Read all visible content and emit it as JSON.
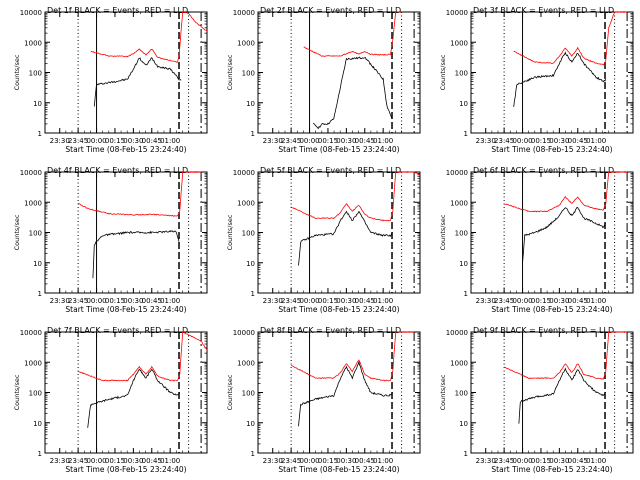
{
  "figure": {
    "xlabel": "Start Time (08-Feb-15 23:24:40)",
    "ylabel": "Counts/sec",
    "colors": {
      "events": "#000000",
      "lld": "#ff0000",
      "axes": "#000000",
      "background": "#ffffff"
    }
  },
  "chart_data": [
    {
      "type": "line",
      "title": "Det 1f BLACK = Events, RED = LLD",
      "xlabel": "Start Time (08-Feb-15 23:24:40)",
      "ylabel": "Counts/sec",
      "x_ticks": [
        "23:30",
        "23:45",
        "00:00",
        "00:15",
        "00:30",
        "00:45",
        "01:00"
      ],
      "y_ticks": [
        "1",
        "10",
        "100",
        "1000",
        "10000"
      ],
      "y_scale": "log",
      "ylim": [
        1,
        10000
      ],
      "series": [
        {
          "name": "Events",
          "color": "#000000",
          "x": [
            23.97,
            24.0,
            24.25,
            24.42,
            24.5,
            24.58,
            24.67,
            24.75,
            24.83,
            25.0,
            25.08,
            25.12,
            25.15
          ],
          "values": [
            8,
            40,
            50,
            60,
            130,
            300,
            170,
            300,
            160,
            130,
            80,
            60,
            55
          ]
        },
        {
          "name": "LLD",
          "color": "#ff0000",
          "x": [
            23.92,
            24.17,
            24.42,
            24.5,
            24.58,
            24.67,
            24.75,
            24.83,
            25.0,
            25.1,
            25.12,
            25.17,
            25.25,
            25.33,
            25.5
          ],
          "values": [
            500,
            350,
            340,
            420,
            600,
            380,
            600,
            320,
            250,
            220,
            350,
            10000,
            9000,
            5000,
            2300
          ]
        }
      ]
    },
    {
      "type": "line",
      "title": "Det 2f BLACK = Events, RED = LLD",
      "xlabel": "Start Time (08-Feb-15 23:24:40)",
      "ylabel": "Counts/sec",
      "x_ticks": [
        "23:30",
        "23:45",
        "00:00",
        "00:15",
        "00:30",
        "00:45",
        "01:00"
      ],
      "y_ticks": [
        "1",
        "10",
        "100",
        "1000",
        "10000"
      ],
      "y_scale": "log",
      "ylim": [
        1,
        10000
      ],
      "series": [
        {
          "name": "Events",
          "color": "#000000",
          "x": [
            24.05,
            24.12,
            24.18,
            24.25,
            24.33,
            24.5,
            24.67,
            24.75,
            24.83,
            25.0,
            25.05,
            25.12
          ],
          "values": [
            2,
            1.5,
            2,
            2,
            3,
            280,
            300,
            320,
            190,
            60,
            8,
            3
          ]
        },
        {
          "name": "LLD",
          "color": "#ff0000",
          "x": [
            23.92,
            24.17,
            24.42,
            24.58,
            24.67,
            24.75,
            24.83,
            25.0,
            25.1,
            25.13,
            25.17,
            25.25
          ],
          "values": [
            700,
            350,
            350,
            500,
            400,
            500,
            400,
            380,
            400,
            1200,
            10000,
            10000
          ]
        }
      ]
    },
    {
      "type": "line",
      "title": "Det 3f BLACK = Events, RED = LLD",
      "xlabel": "Start Time (08-Feb-15 23:24:40)",
      "ylabel": "Counts/sec",
      "x_ticks": [
        "23:30",
        "23:45",
        "00:00",
        "00:15",
        "00:30",
        "00:45",
        "01:00"
      ],
      "y_ticks": [
        "1",
        "10",
        "100",
        "1000",
        "10000"
      ],
      "y_scale": "log",
      "ylim": [
        1,
        10000
      ],
      "series": [
        {
          "name": "Events",
          "color": "#000000",
          "x": [
            23.88,
            23.92,
            24.17,
            24.42,
            24.5,
            24.58,
            24.67,
            24.75,
            24.83,
            25.0,
            25.1,
            25.13
          ],
          "values": [
            7,
            40,
            70,
            80,
            200,
            450,
            220,
            450,
            200,
            70,
            50,
            60
          ]
        },
        {
          "name": "LLD",
          "color": "#ff0000",
          "x": [
            23.88,
            24.17,
            24.42,
            24.5,
            24.58,
            24.67,
            24.75,
            24.83,
            25.0,
            25.1,
            25.13,
            25.17,
            25.25,
            25.42
          ],
          "values": [
            500,
            220,
            200,
            350,
            650,
            350,
            650,
            300,
            200,
            180,
            250,
            3000,
            10000,
            10000
          ]
        }
      ]
    },
    {
      "type": "line",
      "title": "Det 4f BLACK = Events, RED = LLD",
      "xlabel": "Start Time (08-Feb-15 23:24:40)",
      "ylabel": "Counts/sec",
      "x_ticks": [
        "23:30",
        "23:45",
        "00:00",
        "00:15",
        "00:30",
        "00:45",
        "01:00"
      ],
      "y_ticks": [
        "1",
        "10",
        "100",
        "1000",
        "10000"
      ],
      "y_scale": "log",
      "ylim": [
        1,
        10000
      ],
      "series": [
        {
          "name": "Events",
          "color": "#000000",
          "x": [
            23.95,
            23.97,
            24.08,
            24.42,
            24.75,
            25.08,
            25.12
          ],
          "values": [
            3,
            40,
            80,
            100,
            100,
            110,
            50
          ]
        },
        {
          "name": "LLD",
          "color": "#ff0000",
          "x": [
            23.75,
            23.9,
            24.17,
            24.5,
            24.75,
            25.0,
            25.1,
            25.13,
            25.17,
            25.42
          ],
          "values": [
            900,
            600,
            420,
            380,
            400,
            360,
            350,
            500,
            10000,
            10000
          ]
        }
      ]
    },
    {
      "type": "line",
      "title": "Det 5f BLACK = Events, RED = LLD",
      "xlabel": "Start Time (08-Feb-15 23:24:40)",
      "ylabel": "Counts/sec",
      "x_ticks": [
        "23:30",
        "23:45",
        "00:00",
        "00:15",
        "00:30",
        "00:45",
        "01:00"
      ],
      "y_ticks": [
        "1",
        "10",
        "100",
        "1000",
        "10000"
      ],
      "y_scale": "log",
      "ylim": [
        1,
        10000
      ],
      "series": [
        {
          "name": "Events",
          "color": "#000000",
          "x": [
            23.85,
            23.88,
            24.08,
            24.33,
            24.42,
            24.5,
            24.58,
            24.67,
            24.75,
            24.83,
            25.0,
            25.1,
            25.13
          ],
          "values": [
            8,
            50,
            80,
            90,
            250,
            500,
            250,
            500,
            220,
            100,
            80,
            80,
            100
          ]
        },
        {
          "name": "LLD",
          "color": "#ff0000",
          "x": [
            23.75,
            24.08,
            24.33,
            24.42,
            24.5,
            24.58,
            24.67,
            24.75,
            24.83,
            25.0,
            25.1,
            25.13,
            25.17,
            25.42,
            25.5
          ],
          "values": [
            700,
            300,
            300,
            450,
            900,
            500,
            800,
            400,
            300,
            250,
            250,
            500,
            10000,
            10000,
            8000
          ]
        }
      ]
    },
    {
      "type": "line",
      "title": "Det 6f BLACK = Events, RED = LLD",
      "xlabel": "Start Time (08-Feb-15 23:24:40)",
      "ylabel": "Counts/sec",
      "x_ticks": [
        "23:30",
        "23:45",
        "00:00",
        "00:15",
        "00:30",
        "00:45",
        "01:00"
      ],
      "y_ticks": [
        "1",
        "10",
        "100",
        "1000",
        "10000"
      ],
      "y_scale": "log",
      "ylim": [
        1,
        10000
      ],
      "series": [
        {
          "name": "Events",
          "color": "#000000",
          "x": [
            24.0,
            24.03,
            24.17,
            24.33,
            24.5,
            24.58,
            24.67,
            24.75,
            24.83,
            25.0,
            25.1,
            25.13
          ],
          "values": [
            10,
            80,
            100,
            150,
            350,
            700,
            350,
            700,
            300,
            200,
            150,
            200
          ]
        },
        {
          "name": "LLD",
          "color": "#ff0000",
          "x": [
            23.75,
            24.08,
            24.33,
            24.5,
            24.58,
            24.67,
            24.75,
            24.83,
            25.0,
            25.1,
            25.13,
            25.17,
            25.42
          ],
          "values": [
            900,
            500,
            500,
            800,
            1500,
            900,
            1500,
            800,
            600,
            550,
            900,
            10000,
            10000
          ]
        }
      ]
    },
    {
      "type": "line",
      "title": "Det 7f BLACK = Events, RED = LLD",
      "xlabel": "Start Time (08-Feb-15 23:24:40)",
      "ylabel": "Counts/sec",
      "x_ticks": [
        "23:30",
        "23:45",
        "00:00",
        "00:15",
        "00:30",
        "00:45",
        "01:00"
      ],
      "y_ticks": [
        "1",
        "10",
        "100",
        "1000",
        "10000"
      ],
      "y_scale": "log",
      "ylim": [
        1,
        10000
      ],
      "series": [
        {
          "name": "Events",
          "color": "#000000",
          "x": [
            23.88,
            23.92,
            24.17,
            24.42,
            24.5,
            24.58,
            24.67,
            24.75,
            24.83,
            25.0,
            25.1,
            25.13
          ],
          "values": [
            7,
            40,
            60,
            80,
            250,
            600,
            300,
            600,
            250,
            100,
            80,
            100
          ]
        },
        {
          "name": "LLD",
          "color": "#ff0000",
          "x": [
            23.75,
            24.08,
            24.42,
            24.5,
            24.58,
            24.67,
            24.75,
            24.83,
            25.0,
            25.1,
            25.13,
            25.17,
            25.42,
            25.5
          ],
          "values": [
            500,
            250,
            250,
            400,
            700,
            400,
            700,
            350,
            250,
            250,
            400,
            10000,
            5000,
            2500
          ]
        }
      ]
    },
    {
      "type": "line",
      "title": "Det 8f BLACK = Events, RED = LLD",
      "xlabel": "Start Time (08-Feb-15 23:24:40)",
      "ylabel": "Counts/sec",
      "x_ticks": [
        "23:30",
        "23:45",
        "00:00",
        "00:15",
        "00:30",
        "00:45",
        "01:00"
      ],
      "y_ticks": [
        "1",
        "10",
        "100",
        "1000",
        "10000"
      ],
      "y_scale": "log",
      "ylim": [
        1,
        10000
      ],
      "series": [
        {
          "name": "Events",
          "color": "#000000",
          "x": [
            23.85,
            23.88,
            24.08,
            24.33,
            24.42,
            24.5,
            24.58,
            24.67,
            24.75,
            24.83,
            25.0,
            25.1,
            25.13
          ],
          "values": [
            8,
            40,
            60,
            80,
            300,
            700,
            300,
            1000,
            250,
            100,
            80,
            80,
            100
          ]
        },
        {
          "name": "LLD",
          "color": "#ff0000",
          "x": [
            23.75,
            24.08,
            24.33,
            24.42,
            24.5,
            24.58,
            24.67,
            24.75,
            24.83,
            25.0,
            25.1,
            25.13,
            25.17,
            25.42
          ],
          "values": [
            800,
            300,
            300,
            450,
            900,
            500,
            1200,
            400,
            300,
            250,
            250,
            500,
            10000,
            10000
          ]
        }
      ]
    },
    {
      "type": "line",
      "title": "Det 9f BLACK = Events, RED = LLD",
      "xlabel": "Start Time (08-Feb-15 23:24:40)",
      "ylabel": "Counts/sec",
      "x_ticks": [
        "23:30",
        "23:45",
        "00:00",
        "00:15",
        "00:30",
        "00:45",
        "01:00"
      ],
      "y_ticks": [
        "1",
        "10",
        "100",
        "1000",
        "10000"
      ],
      "y_scale": "log",
      "ylim": [
        1,
        10000
      ],
      "series": [
        {
          "name": "Events",
          "color": "#000000",
          "x": [
            23.95,
            23.97,
            24.17,
            24.42,
            24.5,
            24.58,
            24.67,
            24.75,
            24.83,
            25.0,
            25.1,
            25.13
          ],
          "values": [
            10,
            50,
            70,
            90,
            250,
            600,
            250,
            600,
            250,
            100,
            80,
            100
          ]
        },
        {
          "name": "LLD",
          "color": "#ff0000",
          "x": [
            23.75,
            24.08,
            24.42,
            24.5,
            24.58,
            24.67,
            24.75,
            24.83,
            25.0,
            25.1,
            25.13,
            25.17,
            25.42
          ],
          "values": [
            700,
            300,
            300,
            450,
            900,
            450,
            900,
            400,
            300,
            280,
            500,
            10000,
            10000
          ]
        }
      ]
    }
  ]
}
